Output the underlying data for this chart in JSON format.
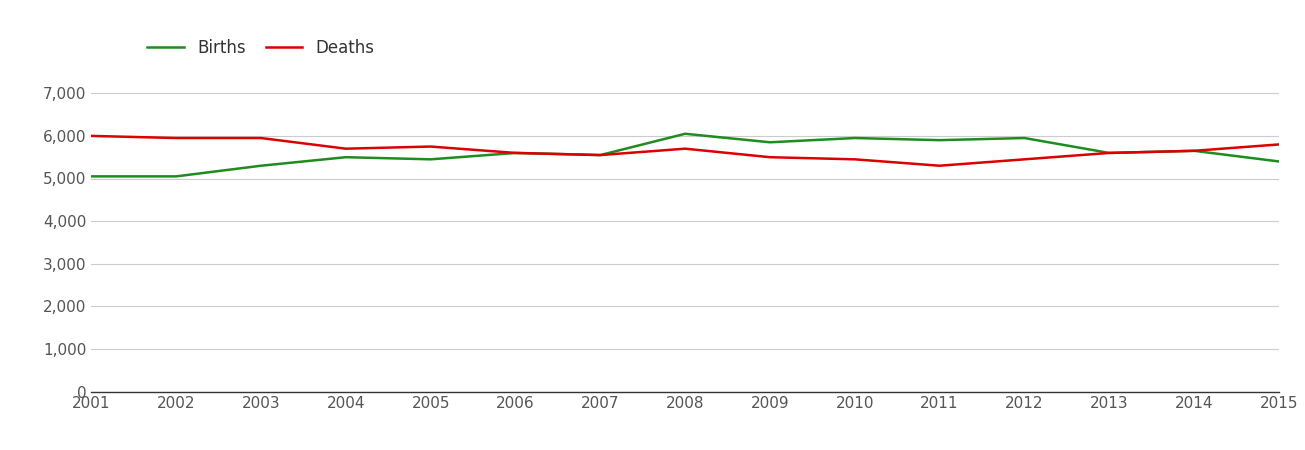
{
  "years": [
    2001,
    2002,
    2003,
    2004,
    2005,
    2006,
    2007,
    2008,
    2009,
    2010,
    2011,
    2012,
    2013,
    2014,
    2015
  ],
  "births": [
    5050,
    5050,
    5300,
    5500,
    5450,
    5600,
    5550,
    6050,
    5850,
    5950,
    5900,
    5950,
    5600,
    5650,
    5400
  ],
  "deaths": [
    6000,
    5950,
    5950,
    5700,
    5750,
    5600,
    5550,
    5700,
    5500,
    5450,
    5300,
    5450,
    5600,
    5650,
    5800
  ],
  "births_color": "#1e8c1e",
  "deaths_color": "#dd0000",
  "line_width": 1.8,
  "ylim": [
    0,
    7500
  ],
  "yticks": [
    0,
    1000,
    2000,
    3000,
    4000,
    5000,
    6000,
    7000
  ],
  "ytick_labels": [
    "0",
    "1,000",
    "2,000",
    "3,000",
    "4,000",
    "5,000",
    "6,000",
    "7,000"
  ],
  "legend_births": "Births",
  "legend_deaths": "Deaths",
  "background_color": "#ffffff",
  "grid_color": "#cccccc",
  "tick_label_color": "#555555",
  "tick_fontsize": 11,
  "legend_fontsize": 12
}
